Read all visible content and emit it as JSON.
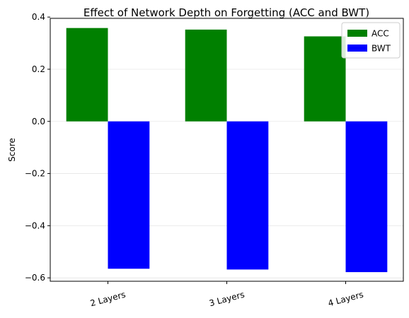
{
  "chart_data": {
    "type": "bar",
    "title": "Effect of Network Depth on Forgetting (ACC and BWT)",
    "xlabel": "",
    "ylabel": "Score",
    "categories": [
      "2 Layers",
      "3 Layers",
      "4 Layers"
    ],
    "series": [
      {
        "name": "ACC",
        "color": "#008000",
        "values": [
          0.358,
          0.352,
          0.326
        ]
      },
      {
        "name": "BWT",
        "color": "#0000ff",
        "values": [
          -0.565,
          -0.568,
          -0.578
        ]
      }
    ],
    "ylim": [
      -0.613,
      0.395
    ],
    "yticks": [
      0.4,
      0.2,
      0.0,
      -0.2,
      -0.4,
      -0.6
    ],
    "ytick_labels": [
      "0.4",
      "0.2",
      "0.0",
      "−0.2",
      "−0.4",
      "−0.6"
    ],
    "grid": "y",
    "legend": "top-right",
    "xtick_rotation": -15
  }
}
